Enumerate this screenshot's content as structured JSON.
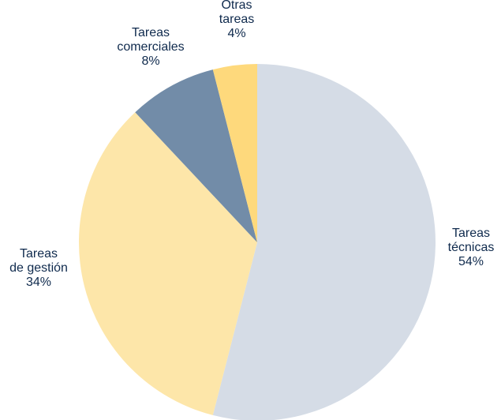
{
  "chart_data": {
    "type": "pie",
    "start_angle_deg": 0,
    "direction": "clockwise",
    "slices": [
      {
        "label_lines": [
          "Tareas",
          "técnicas"
        ],
        "value": 54,
        "value_label": "54%",
        "color": "#d5dce6"
      },
      {
        "label_lines": [
          "Tareas",
          "de gestión"
        ],
        "value": 34,
        "value_label": "34%",
        "color": "#fde6a9"
      },
      {
        "label_lines": [
          "Tareas",
          "comerciales"
        ],
        "value": 8,
        "value_label": "8%",
        "color": "#728ca8"
      },
      {
        "label_lines": [
          "Otras",
          "tareas"
        ],
        "value": 4,
        "value_label": "4%",
        "color": "#fed97c"
      }
    ]
  },
  "colors": {
    "label_text": "#0f2a4d",
    "background": "#ffffff"
  }
}
